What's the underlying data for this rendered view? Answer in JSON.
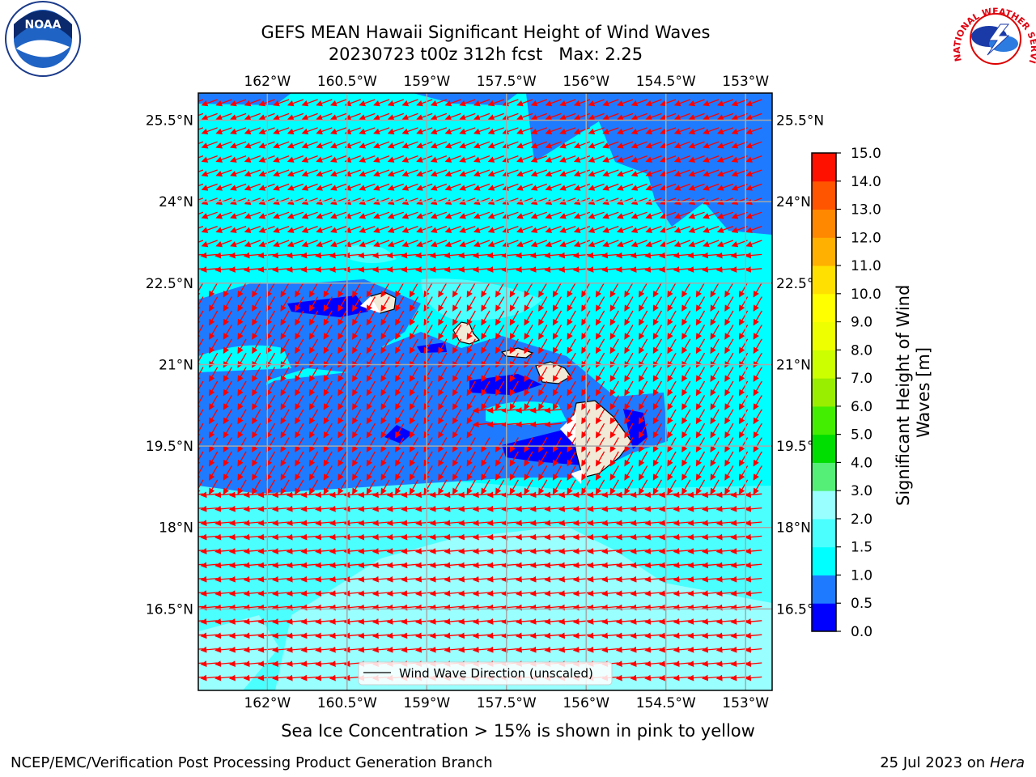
{
  "title": {
    "line1": "GEFS MEAN Hawaii Significant Height of Wind Waves",
    "line2": "20230723 t00z 312h fcst   Max: 2.25"
  },
  "map": {
    "lon_range": [
      -163.3,
      -152.5
    ],
    "lat_range": [
      15.0,
      26.0
    ],
    "lon_ticks": [
      -162,
      -160.5,
      -159,
      -157.5,
      -156,
      -154.5,
      -153
    ],
    "lon_labels": [
      "162°W",
      "160.5°W",
      "159°W",
      "157.5°W",
      "156°W",
      "154.5°W",
      "153°W"
    ],
    "lat_ticks": [
      25.5,
      24,
      22.5,
      21,
      19.5,
      18,
      16.5
    ],
    "lat_labels": [
      "25.5°N",
      "24°N",
      "22.5°N",
      "21°N",
      "19.5°N",
      "18°N",
      "16.5°N"
    ],
    "grid": true,
    "vector_color": "#ff0000",
    "legend_label": "Wind Wave Direction (unscaled)",
    "legend_placement": "bottom-center"
  },
  "colorbar": {
    "label": "Significant Height of Wind Waves [m]",
    "levels": [
      0.0,
      0.5,
      1.0,
      1.5,
      2.0,
      3.0,
      4.0,
      5.0,
      6.0,
      7.0,
      8.0,
      9.0,
      10.0,
      11.0,
      12.0,
      13.0,
      14.0,
      15.0
    ],
    "tick_labels": [
      "0.0",
      "0.5",
      "1.0",
      "1.5",
      "2.0",
      "3.0",
      "4.0",
      "5.0",
      "6.0",
      "7.0",
      "8.0",
      "9.0",
      "10.0",
      "11.0",
      "12.0",
      "13.0",
      "14.0",
      "15.0"
    ],
    "colors": [
      "#0000ff",
      "#1e7bff",
      "#00ffff",
      "#4bffff",
      "#99ffff",
      "#55ee77",
      "#00dd00",
      "#44ee00",
      "#99ee00",
      "#ccff00",
      "#eeff00",
      "#ffff00",
      "#ffe000",
      "#ffb000",
      "#ff8800",
      "#ff5500",
      "#ff1100"
    ]
  },
  "logos": {
    "left": "NOAA",
    "right_text": "NATIONAL WEATHER SERVICE"
  },
  "footer": {
    "note": "Sea Ice Concentration > 15% is shown in pink to yellow",
    "left": "NCEP/EMC/Verification Post Processing Product Generation Branch",
    "right_prefix": "25 Jul 2023 on ",
    "right_host": "Hera"
  },
  "colors": {
    "water_low": "#0000ff",
    "water_mid": "#1e7bff",
    "water_cyan": "#00ffff",
    "water_light": "#4bffff",
    "water_pale": "#99ffff",
    "land": "#f0ead6"
  }
}
